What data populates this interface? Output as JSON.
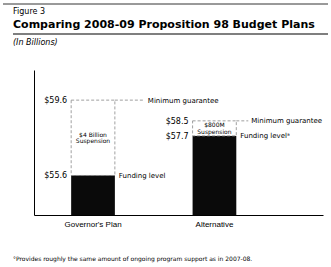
{
  "chart_data": {
    "type": "bar",
    "figure_label": "Figure 3",
    "title": "Comparing 2008-09 Proposition 98 Budget Plans",
    "subtitle": "(In Billions)",
    "footnote": "°Provides roughly the same amount of ongoing program support as in 2007-08.",
    "categories": [
      "Governor's Plan",
      "Alternative"
    ],
    "values": [
      55.6,
      57.7
    ],
    "value_labels": [
      "$55.6",
      "$57.7"
    ],
    "data_labels": true,
    "color": "#0a0a0a",
    "min_guarantee": [
      59.6,
      58.5
    ],
    "min_guarantee_labels": [
      "$59.6",
      "$58.5"
    ],
    "suspension_labels": [
      "$4 Billion\nSuspension",
      "$800M\nSuspension"
    ],
    "guarantee_labels": [
      "Minimum guarantee",
      "Minimum guarantee"
    ],
    "funding_labels": [
      "Funding level",
      "Funding levelᵃ"
    ],
    "ylim": [
      53.5,
      61.2
    ],
    "yticks": [],
    "tick_labels": "x"
  }
}
